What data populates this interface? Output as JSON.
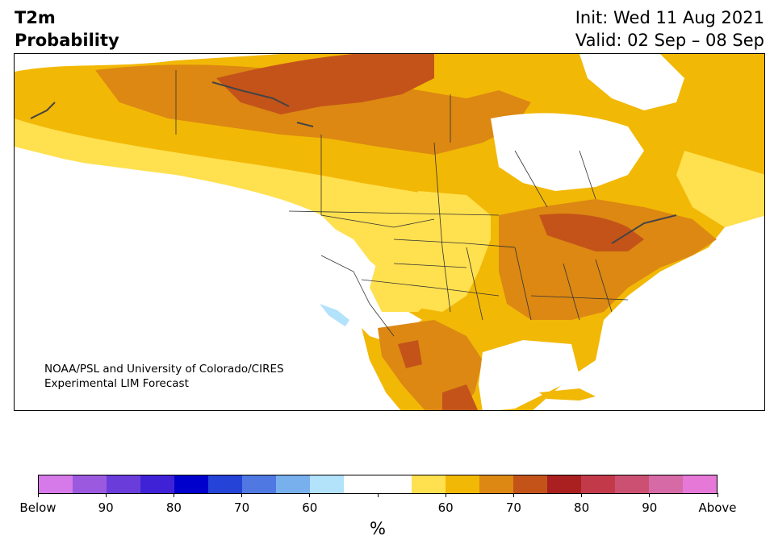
{
  "title": {
    "line1": "T2m",
    "line2": "Probability"
  },
  "dates": {
    "init": "Init: Wed 11 Aug 2021",
    "valid": "Valid: 02 Sep – 08 Sep"
  },
  "credit": {
    "line1": "NOAA/PSL and University of Colorado/CIRES",
    "line2": "Experimental LIM Forecast"
  },
  "colorbar": {
    "unit": "%",
    "colors": [
      "#d57ae8",
      "#9b59e0",
      "#6a3ddb",
      "#3f22d6",
      "#0000cc",
      "#2643d8",
      "#4f78e2",
      "#78b0ee",
      "#b3e2fb",
      "#ffffff",
      "#ffffff",
      "#ffe04f",
      "#f2b806",
      "#dc8812",
      "#c4531a",
      "#aa2020",
      "#c23a4a",
      "#cc5072",
      "#d66aa6",
      "#e678d8"
    ],
    "tick_labels": [
      "Below",
      "90",
      "80",
      "70",
      "60",
      "",
      "60",
      "70",
      "80",
      "90",
      "Above"
    ]
  },
  "legend_palette": {
    "white": "#ffffff",
    "light_yellow": "#ffe04f",
    "yellow": "#f2b806",
    "orange": "#dc8812",
    "dark_orange": "#c4531a",
    "light_blue": "#b3e2fb"
  }
}
